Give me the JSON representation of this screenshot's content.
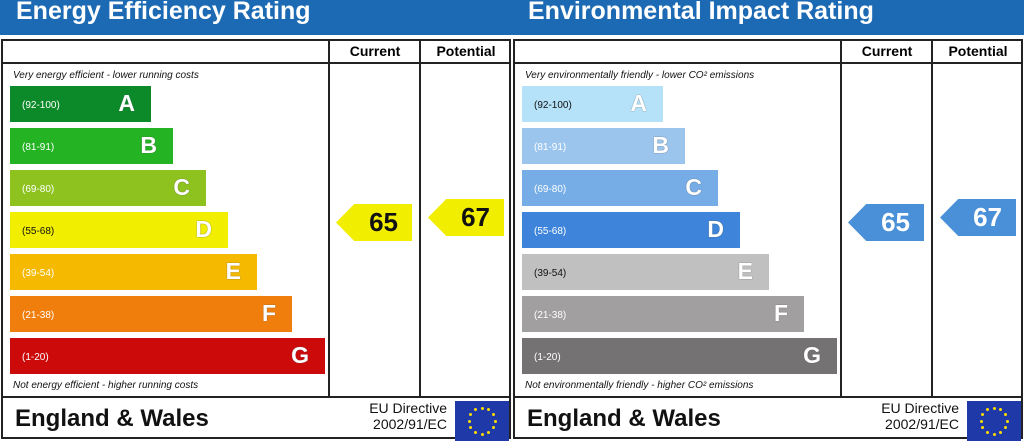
{
  "chart_data": [
    {
      "type": "bar",
      "title": "Energy Efficiency Rating",
      "top_note": "Very energy efficient - lower running costs",
      "bottom_note": "Not energy efficient - higher running costs",
      "columns": [
        "Current",
        "Potential"
      ],
      "bands": [
        {
          "letter": "A",
          "range": "(92-100)",
          "color": "#0c8a2a"
        },
        {
          "letter": "B",
          "range": "(81-91)",
          "color": "#23b323"
        },
        {
          "letter": "C",
          "range": "(69-80)",
          "color": "#8dc21f"
        },
        {
          "letter": "D",
          "range": "(55-68)",
          "color": "#f2ee00"
        },
        {
          "letter": "E",
          "range": "(39-54)",
          "color": "#f5b900"
        },
        {
          "letter": "F",
          "range": "(21-38)",
          "color": "#f07e0c"
        },
        {
          "letter": "G",
          "range": "(1-20)",
          "color": "#cc0a0a"
        }
      ],
      "current": "65",
      "potential": "67",
      "arrow_color": "#f2ee00",
      "arrow_text_color": "#111111",
      "footer": "England & Wales",
      "directive": "EU Directive",
      "directive_code": "2002/91/EC"
    },
    {
      "type": "bar",
      "title": "Environmental Impact Rating",
      "top_note": "Very environmentally friendly - lower CO² emissions",
      "bottom_note": "Not environmentally friendly - higher CO² emissions",
      "columns": [
        "Current",
        "Potential"
      ],
      "bands": [
        {
          "letter": "A",
          "range": "(92-100)",
          "color": "#b5e2f8"
        },
        {
          "letter": "B",
          "range": "(81-91)",
          "color": "#9cc5ee"
        },
        {
          "letter": "C",
          "range": "(69-80)",
          "color": "#76ade6"
        },
        {
          "letter": "D",
          "range": "(55-68)",
          "color": "#3d84da"
        },
        {
          "letter": "E",
          "range": "(39-54)",
          "color": "#c0c0c0"
        },
        {
          "letter": "F",
          "range": "(21-38)",
          "color": "#a29fa1"
        },
        {
          "letter": "G",
          "range": "(1-20)",
          "color": "#747273"
        }
      ],
      "current": "65",
      "potential": "67",
      "arrow_color": "#4a90d8",
      "arrow_text_color": "#ffffff",
      "footer": "England & Wales",
      "directive": "EU Directive",
      "directive_code": "2002/91/EC"
    }
  ]
}
